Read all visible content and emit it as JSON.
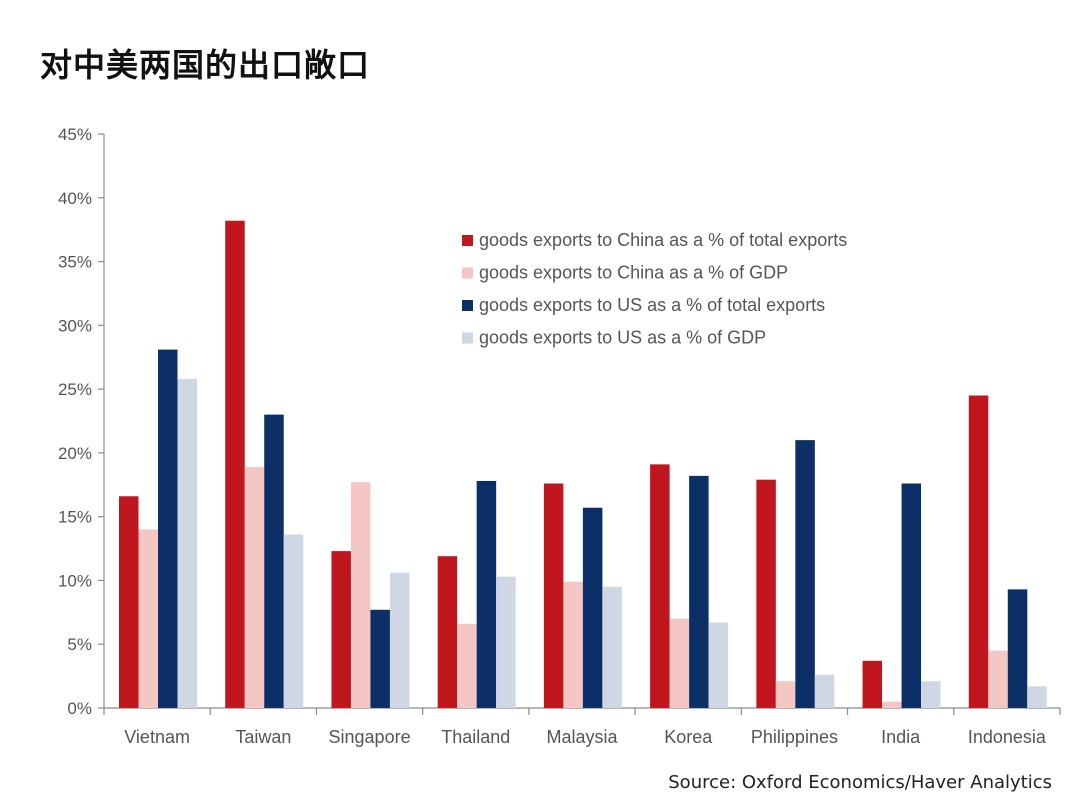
{
  "page": {
    "title": "对中美两国的出口敞口",
    "source": "Source: Oxford Economics/Haver Analytics"
  },
  "chart_data": {
    "type": "bar",
    "title": "",
    "xlabel": "",
    "ylabel": "",
    "ylim": [
      0,
      45
    ],
    "yticks": [
      "0%",
      "5%",
      "10%",
      "15%",
      "20%",
      "25%",
      "30%",
      "35%",
      "40%",
      "45%"
    ],
    "grid": false,
    "legend_position": "top-right",
    "categories": [
      "Vietnam",
      "Taiwan",
      "Singapore",
      "Thailand",
      "Malaysia",
      "Korea",
      "Philippines",
      "India",
      "Indonesia"
    ],
    "series": [
      {
        "name": "goods exports to China as a % of total exports",
        "color": "#c0171f",
        "values": [
          16.6,
          38.2,
          12.3,
          11.9,
          17.6,
          19.1,
          17.9,
          3.7,
          24.5
        ]
      },
      {
        "name": "goods exports to China as a % of GDP",
        "color": "#f4c6c4",
        "values": [
          14.0,
          18.9,
          17.7,
          6.6,
          9.9,
          7.0,
          2.1,
          0.5,
          4.5
        ]
      },
      {
        "name": "goods exports to US as a % of total exports",
        "color": "#0b2f66",
        "values": [
          28.1,
          23.0,
          7.7,
          17.8,
          15.7,
          18.2,
          21.0,
          17.6,
          9.3
        ]
      },
      {
        "name": "goods exports to US as a % of GDP",
        "color": "#cfd7e4",
        "values": [
          25.8,
          13.6,
          10.6,
          10.3,
          9.5,
          6.7,
          2.6,
          2.1,
          1.7
        ]
      }
    ]
  }
}
